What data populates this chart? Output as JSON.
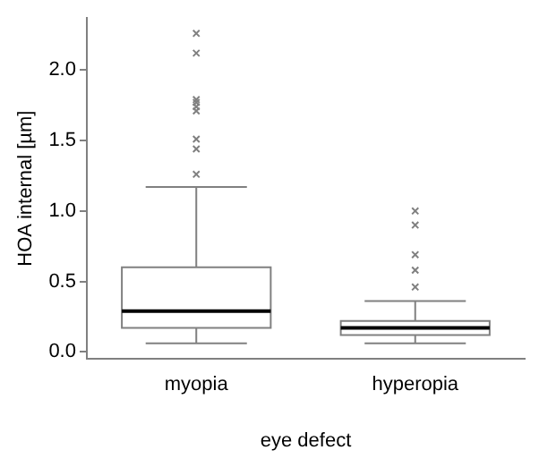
{
  "chart_data": {
    "type": "box",
    "xlabel": "eye defect",
    "ylabel": "HOA internal [µm]",
    "categories": [
      "myopia",
      "hyperopia"
    ],
    "boxes": [
      {
        "low": 0.06,
        "q1": 0.17,
        "median": 0.29,
        "q3": 0.6,
        "high": 1.17,
        "outliers": [
          2.26,
          2.12,
          1.79,
          1.77,
          1.74,
          1.71,
          1.51,
          1.44,
          1.26
        ]
      },
      {
        "low": 0.06,
        "q1": 0.12,
        "median": 0.17,
        "q3": 0.22,
        "high": 0.36,
        "outliers": [
          1.0,
          0.9,
          0.69,
          0.58,
          0.46
        ]
      }
    ],
    "color": "#808080",
    "ylim": [
      -0.05,
      2.37
    ],
    "yticks": [
      {
        "value": 0,
        "label": "0.0"
      },
      {
        "value": 0.5,
        "label": "0.5"
      },
      {
        "value": 1,
        "label": "1.0"
      },
      {
        "value": 1.5,
        "label": "1.5"
      },
      {
        "value": 2,
        "label": "2.0"
      }
    ],
    "grid": false,
    "legend": false,
    "marker": "cross"
  }
}
